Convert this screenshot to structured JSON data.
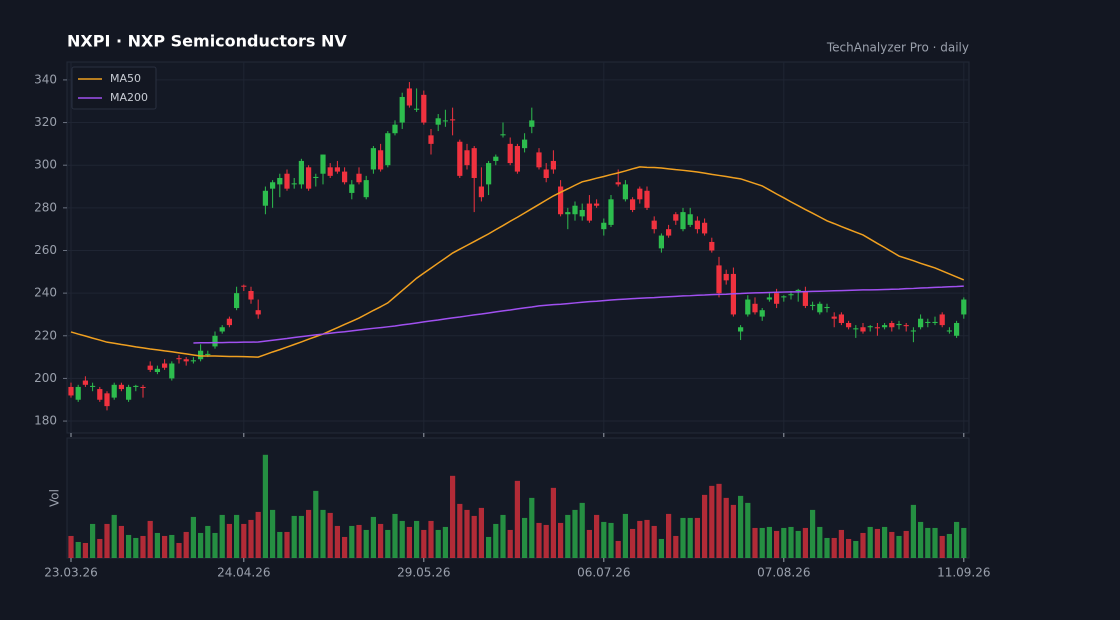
{
  "chart_data": {
    "type": "candlestick",
    "title": "NXPI  ·  NXP Semiconductors NV",
    "subtitle": "TechAnalyzer Pro · daily",
    "volume_label": "Vol",
    "legend": "upper left",
    "grid": true,
    "up_color": "#2dbd4e",
    "down_color": "#f0323f",
    "ylim": [
      174.4,
      348.4
    ],
    "yticks": [
      180,
      200,
      220,
      240,
      260,
      280,
      300,
      320,
      340
    ],
    "categories": [
      "23.03.26",
      null,
      null,
      null,
      null,
      null,
      null,
      null,
      null,
      null,
      null,
      null,
      null,
      null,
      null,
      null,
      null,
      null,
      null,
      null,
      null,
      null,
      null,
      null,
      "24.04.26",
      null,
      null,
      null,
      null,
      null,
      null,
      null,
      null,
      null,
      null,
      null,
      null,
      null,
      null,
      null,
      null,
      null,
      null,
      null,
      null,
      null,
      null,
      null,
      null,
      "29.05.26",
      null,
      null,
      null,
      null,
      null,
      null,
      null,
      null,
      null,
      null,
      null,
      null,
      null,
      null,
      null,
      null,
      null,
      null,
      null,
      null,
      null,
      null,
      null,
      null,
      "06.07.26",
      null,
      null,
      null,
      null,
      null,
      null,
      null,
      null,
      null,
      null,
      null,
      null,
      null,
      null,
      null,
      null,
      null,
      null,
      null,
      null,
      null,
      null,
      null,
      null,
      "07.08.26",
      null,
      null,
      null,
      null,
      null,
      null,
      null,
      null,
      null,
      null,
      null,
      null,
      null,
      null,
      null,
      null,
      null,
      null,
      null,
      null,
      null,
      null,
      null,
      null,
      "11.09.26"
    ],
    "candles": [
      [
        196,
        198,
        191,
        192
      ],
      [
        190,
        197,
        189,
        196
      ],
      [
        199,
        201,
        196,
        197
      ],
      [
        196,
        198,
        194,
        196.5
      ],
      [
        195,
        196,
        189,
        190
      ],
      [
        193,
        194,
        185,
        187
      ],
      [
        191,
        198,
        190,
        197
      ],
      [
        197,
        198,
        194,
        195
      ],
      [
        190,
        197,
        189,
        196
      ],
      [
        196,
        197,
        194,
        196.5
      ],
      [
        196,
        197,
        191,
        195.5
      ],
      [
        206,
        208,
        203,
        204
      ],
      [
        203,
        206,
        202,
        204.5
      ],
      [
        207,
        209,
        204,
        205
      ],
      [
        200,
        208,
        199,
        207
      ],
      [
        209.5,
        211,
        207,
        209
      ],
      [
        209,
        210,
        206,
        208
      ],
      [
        208,
        210,
        207,
        208.5
      ],
      [
        209,
        216,
        208,
        213
      ],
      [
        211,
        213,
        210,
        211.5
      ],
      [
        215,
        222,
        214,
        220
      ],
      [
        222,
        225,
        221,
        224
      ],
      [
        228,
        229,
        224,
        225
      ],
      [
        233,
        243,
        232,
        240
      ],
      [
        243.5,
        244,
        241,
        243
      ],
      [
        241,
        243,
        235,
        237
      ],
      [
        232,
        237,
        228,
        230
      ],
      [
        281,
        290,
        277,
        288
      ],
      [
        289,
        293,
        280,
        292
      ],
      [
        291,
        296,
        285,
        294
      ],
      [
        296,
        298,
        288,
        289
      ],
      [
        291,
        294,
        289,
        291.5
      ],
      [
        291,
        303,
        289,
        302
      ],
      [
        299,
        300,
        288,
        289
      ],
      [
        294,
        296,
        290,
        294.5
      ],
      [
        296,
        305,
        291,
        305
      ],
      [
        299,
        301,
        294,
        295
      ],
      [
        299,
        302,
        296,
        297
      ],
      [
        297,
        299,
        291,
        292
      ],
      [
        287,
        293,
        284,
        291
      ],
      [
        296,
        299,
        291,
        292
      ],
      [
        285,
        295,
        284,
        293
      ],
      [
        298,
        309,
        296,
        308
      ],
      [
        307,
        310,
        297,
        298
      ],
      [
        300,
        316,
        299,
        315
      ],
      [
        315,
        321,
        314,
        319
      ],
      [
        320,
        334,
        317,
        332
      ],
      [
        336,
        339,
        327,
        328
      ],
      [
        326,
        336,
        325,
        326.5
      ],
      [
        333,
        335,
        319,
        320
      ],
      [
        314,
        317,
        305,
        310
      ],
      [
        319,
        324,
        316,
        322
      ],
      [
        321,
        326,
        318,
        321
      ],
      [
        321.5,
        327,
        314,
        321
      ],
      [
        311,
        312,
        294,
        295
      ],
      [
        307,
        310,
        298,
        300
      ],
      [
        308,
        309,
        278,
        294
      ],
      [
        290,
        299,
        283,
        285
      ],
      [
        291,
        302,
        286,
        301
      ],
      [
        302,
        305,
        300,
        304
      ],
      [
        314,
        320,
        313,
        314.5
      ],
      [
        310,
        313,
        300,
        301
      ],
      [
        309,
        310,
        296,
        297
      ],
      [
        308,
        315,
        306,
        312
      ],
      [
        318,
        327,
        315,
        321
      ],
      [
        306,
        308,
        298,
        299
      ],
      [
        298,
        301,
        292,
        294
      ],
      [
        302,
        307,
        296,
        298
      ],
      [
        290,
        293,
        276,
        277
      ],
      [
        277,
        280,
        270,
        278
      ],
      [
        277,
        283,
        274,
        281
      ],
      [
        276,
        282,
        274,
        279
      ],
      [
        282,
        286,
        273,
        274
      ],
      [
        282,
        284,
        280,
        281
      ],
      [
        270,
        275,
        267,
        273
      ],
      [
        272,
        286,
        271,
        284
      ],
      [
        292,
        298,
        290,
        291
      ],
      [
        284,
        293,
        283,
        291
      ],
      [
        284,
        285,
        278,
        279
      ],
      [
        289,
        290,
        282,
        284
      ],
      [
        288,
        290,
        279,
        280
      ],
      [
        274,
        276,
        268,
        270
      ],
      [
        261,
        268,
        259,
        267
      ],
      [
        270,
        272,
        266,
        267
      ],
      [
        277,
        278,
        272,
        274
      ],
      [
        270,
        280,
        269,
        278
      ],
      [
        272,
        280,
        271,
        277
      ],
      [
        274,
        276,
        268,
        270
      ],
      [
        273,
        275,
        267,
        268
      ],
      [
        264,
        266,
        259,
        260
      ],
      [
        253,
        257,
        238,
        240
      ],
      [
        249,
        251,
        244,
        246
      ],
      [
        249,
        252,
        229,
        230
      ],
      [
        222,
        225,
        218,
        224
      ],
      [
        230,
        239,
        229,
        237
      ],
      [
        235,
        238,
        230,
        231
      ],
      [
        229,
        233,
        227,
        232
      ],
      [
        237,
        240,
        236,
        238
      ],
      [
        240,
        242,
        233,
        235
      ],
      [
        238,
        239,
        236,
        238.5
      ],
      [
        239,
        241,
        237,
        239.5
      ],
      [
        241,
        242,
        236,
        241.5
      ],
      [
        241,
        243,
        233,
        234
      ],
      [
        234,
        236,
        232,
        234.5
      ],
      [
        231,
        236,
        230,
        235
      ],
      [
        233,
        235,
        231,
        233.5
      ],
      [
        229,
        231,
        224,
        228
      ],
      [
        230,
        231,
        225,
        226
      ],
      [
        226,
        227,
        223,
        224
      ],
      [
        223,
        225,
        219,
        223.5
      ],
      [
        224,
        226,
        221,
        222
      ],
      [
        224,
        225,
        222,
        224.5
      ],
      [
        224,
        226,
        220,
        223.5
      ],
      [
        224,
        226,
        223,
        225
      ],
      [
        226,
        227,
        222,
        224
      ],
      [
        225,
        227,
        223,
        225.5
      ],
      [
        225,
        226,
        222,
        224.5
      ],
      [
        222,
        224,
        217,
        222.5
      ],
      [
        224,
        230,
        223,
        228
      ],
      [
        226,
        228,
        224,
        226.5
      ],
      [
        226,
        229,
        225,
        226.5
      ],
      [
        230,
        231,
        224,
        225
      ],
      [
        222,
        224,
        221,
        222.5
      ],
      [
        220,
        227,
        219,
        226
      ],
      [
        230,
        238,
        228,
        237
      ]
    ],
    "volume": [
      22,
      16,
      15,
      34,
      19,
      34,
      43,
      32,
      23,
      20,
      22,
      37,
      25,
      22,
      23,
      15,
      26,
      41,
      25,
      32,
      25,
      43,
      34,
      43,
      34,
      38,
      46,
      103,
      48,
      26,
      26,
      42,
      42,
      48,
      67,
      48,
      45,
      32,
      21,
      32,
      33,
      28,
      41,
      34,
      28,
      44,
      37,
      31,
      37,
      28,
      37,
      28,
      31,
      82,
      54,
      48,
      42,
      50,
      21,
      34,
      43,
      28,
      77,
      40,
      60,
      35,
      33,
      70,
      35,
      43,
      48,
      55,
      28,
      43,
      36,
      35,
      17,
      44,
      29,
      37,
      38,
      32,
      19,
      44,
      22,
      40,
      40,
      40,
      63,
      72,
      74,
      60,
      53,
      62,
      55,
      30,
      30,
      31,
      27,
      30,
      31,
      27,
      30,
      48,
      31,
      20,
      20,
      28,
      19,
      17,
      25,
      31,
      29,
      31,
      26,
      22,
      27,
      53,
      36,
      30,
      30,
      22,
      24,
      36,
      30
    ],
    "series": [
      {
        "name": "MA50",
        "color": "#f0a020",
        "values": [
          221.8,
          220.8,
          219.9,
          218.9,
          218.0,
          217.0,
          216.5,
          215.9,
          215.4,
          214.8,
          214.3,
          213.8,
          213.4,
          212.9,
          212.5,
          212.0,
          211.5,
          211.0,
          210.5,
          210.5,
          210.5,
          210.4,
          210.3,
          210.3,
          210.2,
          210.1,
          210.0,
          211.2,
          212.4,
          213.5,
          214.7,
          215.9,
          217.1,
          218.4,
          219.6,
          220.8,
          222.3,
          223.8,
          225.3,
          226.8,
          228.3,
          230.1,
          231.9,
          233.6,
          235.4,
          238.3,
          241.2,
          244.1,
          247.0,
          249.4,
          251.7,
          254.1,
          256.4,
          258.8,
          260.6,
          262.4,
          264.2,
          266.0,
          267.8,
          269.8,
          271.7,
          273.7,
          275.6,
          277.6,
          279.6,
          281.6,
          283.6,
          285.6,
          287.3,
          288.9,
          290.6,
          292.2,
          293.0,
          293.9,
          294.7,
          295.6,
          296.4,
          297.3,
          298.3,
          299.2,
          299.0,
          298.9,
          298.7,
          298.3,
          297.9,
          297.6,
          297.2,
          296.8,
          296.3,
          295.7,
          295.2,
          294.7,
          294.1,
          293.6,
          292.5,
          291.4,
          290.3,
          288.4,
          286.5,
          284.7,
          282.8,
          281.0,
          279.2,
          277.5,
          275.7,
          273.9,
          272.6,
          271.2,
          269.9,
          268.6,
          267.3,
          265.3,
          263.3,
          261.4,
          259.4,
          257.4,
          256.3,
          255.2,
          254.0,
          252.9,
          251.8,
          250.4,
          249.0,
          247.6,
          246.2
        ]
      },
      {
        "name": "MA200",
        "color": "#a050f0",
        "values": [
          null,
          null,
          null,
          null,
          null,
          null,
          null,
          null,
          null,
          null,
          null,
          null,
          null,
          null,
          null,
          null,
          null,
          216.6,
          216.7,
          216.7,
          216.8,
          216.8,
          216.9,
          216.9,
          217.0,
          217.0,
          217.1,
          217.5,
          217.9,
          218.3,
          218.7,
          219.2,
          219.6,
          220.0,
          220.4,
          220.8,
          221.2,
          221.6,
          221.9,
          222.3,
          222.7,
          223.1,
          223.5,
          223.8,
          224.2,
          224.6,
          225.1,
          225.5,
          226.0,
          226.5,
          227.0,
          227.4,
          227.9,
          228.4,
          228.8,
          229.3,
          229.8,
          230.2,
          230.7,
          231.2,
          231.7,
          232.1,
          232.6,
          233.1,
          233.5,
          234.0,
          234.3,
          234.6,
          234.8,
          235.1,
          235.4,
          235.7,
          236.0,
          236.2,
          236.5,
          236.8,
          237.0,
          237.2,
          237.4,
          237.6,
          237.8,
          237.9,
          238.1,
          238.3,
          238.5,
          238.7,
          238.8,
          239.0,
          239.1,
          239.3,
          239.4,
          239.5,
          239.7,
          239.8,
          240.0,
          240.1,
          240.2,
          240.3,
          240.4,
          240.5,
          240.6,
          240.6,
          240.7,
          240.8,
          240.9,
          241.0,
          241.1,
          241.2,
          241.3,
          241.4,
          241.5,
          241.5,
          241.6,
          241.7,
          241.8,
          241.9,
          242.1,
          242.2,
          242.4,
          242.5,
          242.7,
          242.8,
          243.0,
          243.1,
          243.3
        ]
      }
    ]
  }
}
